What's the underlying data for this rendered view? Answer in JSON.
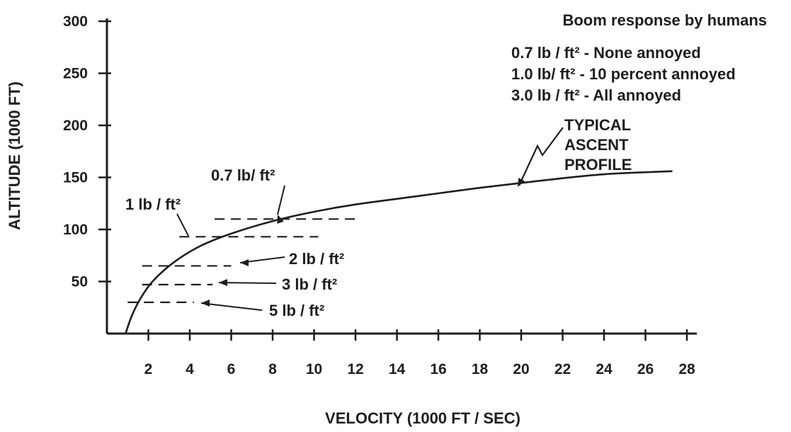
{
  "chart_data": {
    "type": "line",
    "title": "",
    "xlabel": "VELOCITY (1000 FT / SEC)",
    "ylabel": "ALTITUDE (1000 FT)",
    "xlim": [
      0,
      28
    ],
    "ylim": [
      0,
      300
    ],
    "x_ticks": [
      2,
      4,
      6,
      8,
      10,
      12,
      14,
      16,
      18,
      20,
      22,
      24,
      26,
      28
    ],
    "y_ticks": [
      50,
      100,
      150,
      200,
      250,
      300
    ],
    "grid": false,
    "series": [
      {
        "name": "TYPICAL ASCENT PROFILE",
        "points": [
          [
            0.9,
            0
          ],
          [
            1.2,
            17
          ],
          [
            1.6,
            33
          ],
          [
            2.2,
            50
          ],
          [
            3.2,
            68
          ],
          [
            4.5,
            84
          ],
          [
            6,
            96
          ],
          [
            8,
            108
          ],
          [
            10,
            117
          ],
          [
            12,
            124
          ],
          [
            15,
            132
          ],
          [
            18,
            140
          ],
          [
            21,
            147
          ],
          [
            24,
            153
          ],
          [
            27.3,
            156
          ]
        ]
      }
    ],
    "overpressure_contours": [
      {
        "label": "0.7 lb/ ft²",
        "altitude": 110,
        "x_range": [
          5.2,
          12.1
        ]
      },
      {
        "label": "1 lb / ft²",
        "altitude": 93,
        "x_range": [
          3.5,
          10.2
        ]
      },
      {
        "label": "2 lb / ft²",
        "altitude": 65,
        "x_range": [
          1.7,
          6.0
        ]
      },
      {
        "label": "3 lb / ft²",
        "altitude": 47,
        "x_range": [
          1.7,
          5.1
        ]
      },
      {
        "label": "5 lb / ft²",
        "altitude": 30,
        "x_range": [
          1.0,
          4.2
        ]
      }
    ],
    "legend": {
      "title": "Boom response by humans",
      "entries": [
        "0.7 lb / ft² - None annoyed",
        "1.0 lb/ ft² - 10 percent annoyed",
        "3.0 lb / ft² - All annoyed"
      ],
      "position": "top-right"
    },
    "curve_label": [
      "TYPICAL",
      "ASCENT",
      "PROFILE"
    ]
  }
}
